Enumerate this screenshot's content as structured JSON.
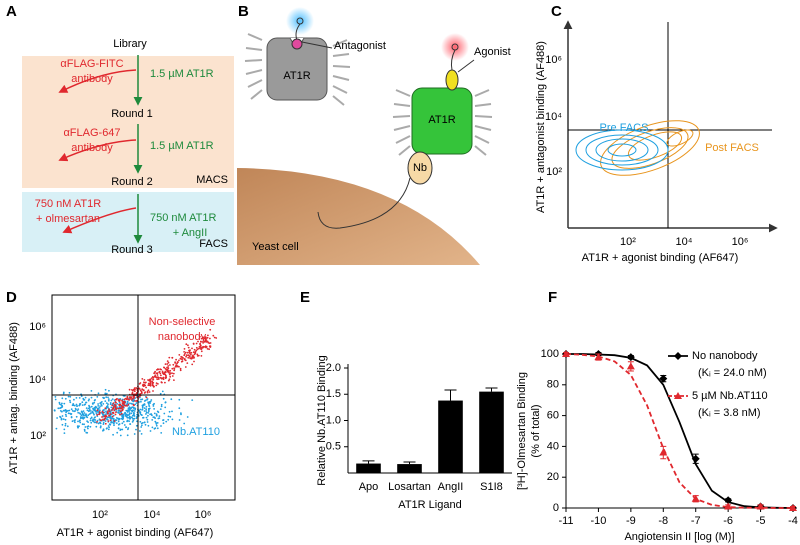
{
  "panel_a": {
    "label": "A",
    "title": "Library",
    "steps": [
      {
        "left": [
          "αFLAG-FITC",
          "antibody"
        ],
        "right": [
          "1.5 µM AT1R"
        ],
        "result": "Round 1"
      },
      {
        "left": [
          "αFLAG-647",
          "antibody"
        ],
        "right": [
          "1.5 µM AT1R"
        ],
        "result": "Round 2"
      },
      {
        "left": [
          "750 nM AT1R",
          "+ olmesartan"
        ],
        "right": [
          "750 nM AT1R",
          "+ AngII"
        ],
        "result": "Round 3"
      }
    ],
    "groups": [
      "MACS",
      "FACS"
    ]
  },
  "panel_b": {
    "label": "B",
    "antagonist": "Antagonist",
    "agonist": "Agonist",
    "receptor": "AT1R",
    "nanobody": "Nb",
    "cell": "Yeast cell"
  },
  "panel_c": {
    "label": "C",
    "xlabel": "AT1R + agonist binding (AF647)",
    "ylabel": "AT1R + antagonist binding (AF488)",
    "xticks": [
      "10²",
      "10⁴",
      "10⁶"
    ],
    "yticks": [
      "10²",
      "10⁴",
      "10⁶"
    ],
    "populations": [
      "Pre FACS",
      "Post FACS"
    ]
  },
  "panel_d": {
    "label": "D",
    "xlabel": "AT1R + agonist binding (AF647)",
    "ylabel": "AT1R + antag. binding (AF488)",
    "xticks": [
      "10²",
      "10⁴",
      "10⁶"
    ],
    "yticks": [
      "10²",
      "10⁴",
      "10⁶"
    ],
    "populations": [
      [
        "Non-selective",
        "nanobody"
      ],
      [
        "Nb.AT110"
      ]
    ]
  },
  "chart_data": [
    {
      "type": "bar",
      "label": "E",
      "ylabel": "Relative Nb.AT110 Binding",
      "xlabel": "AT1R Ligand",
      "categories": [
        "Apo",
        "Losartan",
        "AngII",
        "S1I8"
      ],
      "values": [
        0.18,
        0.17,
        1.38,
        1.55
      ],
      "errors": [
        0.05,
        0.04,
        0.2,
        0.07
      ],
      "color": "#000000",
      "ylim": [
        0,
        2
      ],
      "yticks": [
        0.5,
        {
          "value": 1,
          "label": "1.0"
        },
        1.5,
        {
          "value": 2,
          "label": "2.0"
        }
      ]
    },
    {
      "type": "line",
      "label": "F",
      "ylabel": [
        "[³H]-Olmesartan Binding",
        "(% of total)"
      ],
      "xlabel": "Angiotensin II [log (M)]",
      "xlim": [
        -11,
        -4
      ],
      "xticks": [
        -11,
        -10,
        -9,
        -8,
        -7,
        -6,
        -5,
        -4
      ],
      "ylim": [
        0,
        100
      ],
      "yticks": [
        0,
        20,
        40,
        60,
        80,
        100
      ],
      "fit_x": [
        -11,
        -10.5,
        -10,
        -9.5,
        -9,
        -8.5,
        -8,
        -7.5,
        -7,
        -6.5,
        -6,
        -5.5,
        -5,
        -4.5,
        -4
      ],
      "series": [
        {
          "name": "No nanobody",
          "note": "(Kᵢ = 24.0 nM)",
          "color": "#000000",
          "marker": "diamond",
          "dashed": false,
          "x": [
            -11,
            -10,
            -9,
            -8,
            -7,
            -6,
            -5,
            -4
          ],
          "values": [
            100,
            100,
            98,
            84,
            32,
            5,
            1,
            0
          ],
          "errors": [
            1,
            1,
            1,
            2,
            3,
            1,
            1,
            1
          ],
          "fit": [
            100,
            100,
            99.7,
            99.2,
            97.5,
            92.6,
            80,
            55.7,
            28.5,
            11.2,
            3.8,
            1.2,
            0.4,
            0.1,
            0
          ]
        },
        {
          "name": "5 µM Nb.AT110",
          "note": "(Kᵢ = 3.8 nM)",
          "color": "#e0282e",
          "marker": "triangle",
          "dashed": true,
          "x": [
            -11,
            -10,
            -9,
            -8,
            -7,
            -6,
            -5,
            -4
          ],
          "values": [
            100,
            98,
            92,
            36,
            6,
            1,
            1,
            0
          ],
          "errors": [
            1,
            2,
            3,
            4,
            2,
            1,
            1,
            1
          ],
          "fit": [
            100,
            99.5,
            98.4,
            95.2,
            86.3,
            66.6,
            38.7,
            16.6,
            5.9,
            2,
            0.6,
            0.2,
            0.1,
            0,
            0
          ]
        }
      ]
    }
  ]
}
